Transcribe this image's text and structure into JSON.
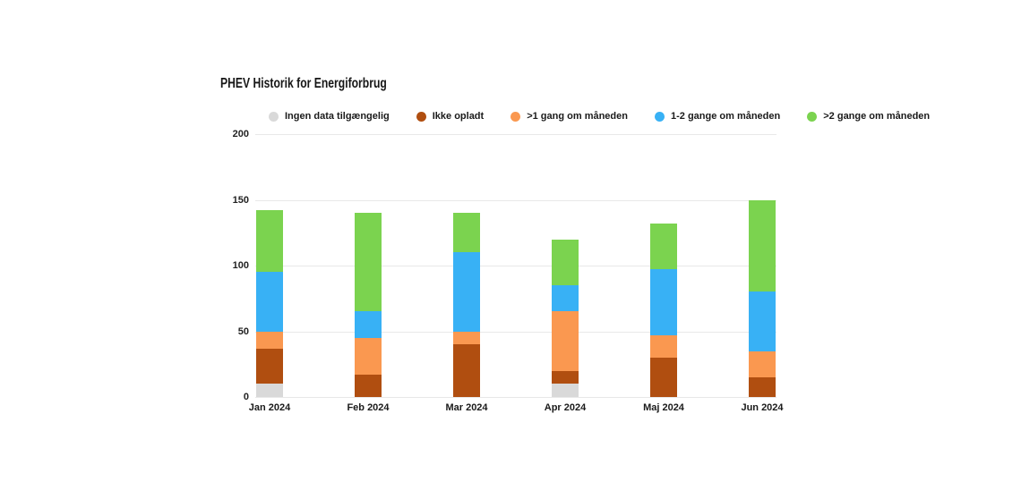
{
  "title": "PHEV Historik for Energiforbrug",
  "chart_data": {
    "type": "bar",
    "stacked": true,
    "title": "PHEV Historik for Energiforbrug",
    "categories": [
      "Jan 2024",
      "Feb 2024",
      "Mar 2024",
      "Apr 2024",
      "Maj 2024",
      "Jun 2024"
    ],
    "series": [
      {
        "name": "Ingen data tilgængelig",
        "color": "#d9d9d9",
        "values": [
          10,
          0,
          0,
          10,
          0,
          0
        ]
      },
      {
        "name": "Ikke opladt",
        "color": "#b04e10",
        "values": [
          27,
          17,
          40,
          10,
          30,
          15
        ]
      },
      {
        "name": ">1 gang om måneden",
        "color": "#fa9850",
        "values": [
          13,
          28,
          10,
          45,
          17,
          20
        ]
      },
      {
        "name": "1-2 gange om måneden",
        "color": "#38b1f5",
        "values": [
          45,
          20,
          60,
          20,
          50,
          45
        ]
      },
      {
        "name": ">2 gange om måneden",
        "color": "#7bd34f",
        "values": [
          47,
          75,
          30,
          35,
          35,
          70
        ]
      }
    ],
    "totals": [
      142,
      140,
      140,
      120,
      132,
      150
    ],
    "xlabel": "",
    "ylabel": "",
    "ylim": [
      0,
      200
    ],
    "yticks": [
      0,
      50,
      100,
      150,
      200
    ],
    "grid": true,
    "legend_position": "top",
    "background": "#ffffff"
  }
}
